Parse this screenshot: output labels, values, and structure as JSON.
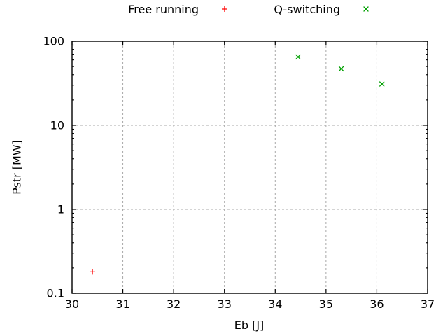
{
  "window": {
    "background": "#ffffff"
  },
  "chart_data": {
    "type": "scatter",
    "title": "",
    "xlabel": "Eb [J]",
    "ylabel": "Pstr [MW]",
    "xscale": "linear",
    "yscale": "log",
    "xlim": [
      30,
      37
    ],
    "ylim": [
      0.1,
      100
    ],
    "xticks": {
      "values": [
        30,
        31,
        32,
        33,
        34,
        35,
        36,
        37
      ],
      "labels": [
        "30",
        "31",
        "32",
        "33",
        "34",
        "35",
        "36",
        "37"
      ]
    },
    "yticks": {
      "values": [
        0.1,
        1,
        10,
        100
      ],
      "labels": [
        "0.1",
        "1",
        "10",
        "100"
      ]
    },
    "yticks_minor": [
      0.2,
      0.3,
      0.4,
      0.5,
      0.6,
      0.7,
      0.8,
      0.9,
      2,
      3,
      4,
      5,
      6,
      7,
      8,
      9,
      20,
      30,
      40,
      50,
      60,
      70,
      80,
      90
    ],
    "grid": {
      "show": true,
      "color": "#a8a8a8",
      "style": "dashed"
    },
    "axis_color": "#000000",
    "text_color": "#000000",
    "legend_position": "top-center-horizontal",
    "series": [
      {
        "name": "Free running",
        "marker": "plus",
        "color": "#ff0000",
        "points": [
          {
            "x": 30.4,
            "y": 0.18
          }
        ]
      },
      {
        "name": "Q-switching",
        "marker": "cross",
        "color": "#00a000",
        "points": [
          {
            "x": 34.45,
            "y": 65
          },
          {
            "x": 35.3,
            "y": 47
          },
          {
            "x": 36.1,
            "y": 31
          }
        ]
      }
    ]
  }
}
